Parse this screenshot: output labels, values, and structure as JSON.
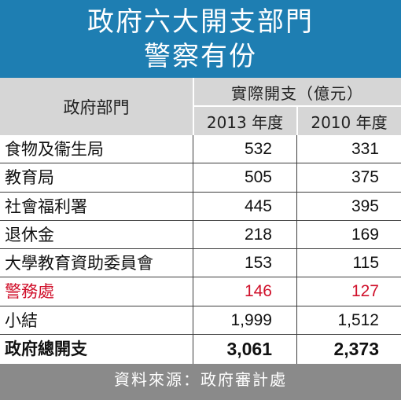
{
  "title": {
    "line1": "政府六大開支部門",
    "line2": "警察有份"
  },
  "header": {
    "dept": "政府部門",
    "spend": "實際開支（億元）",
    "year1": "2013 年度",
    "year2": "2010 年度"
  },
  "rows": [
    {
      "name": "食物及衞生局",
      "v2013": "532",
      "v2010": "331"
    },
    {
      "name": "教育局",
      "v2013": "505",
      "v2010": "375"
    },
    {
      "name": "社會福利署",
      "v2013": "445",
      "v2010": "395"
    },
    {
      "name": "退休金",
      "v2013": "218",
      "v2010": "169"
    },
    {
      "name": "大學教育資助委員會",
      "v2013": "153",
      "v2010": "115"
    },
    {
      "name": "警務處",
      "v2013": "146",
      "v2010": "127"
    },
    {
      "name": "小結",
      "v2013": "1,999",
      "v2010": "1,512"
    },
    {
      "name": "政府總開支",
      "v2013": "3,061",
      "v2010": "2,373"
    }
  ],
  "source": "資料來源：政府審計處",
  "colors": {
    "title_bg": "#1e7eb2",
    "header_bg": "#d6d6d6",
    "highlight": "#d0112b",
    "source_bg": "#8a8a8a"
  }
}
